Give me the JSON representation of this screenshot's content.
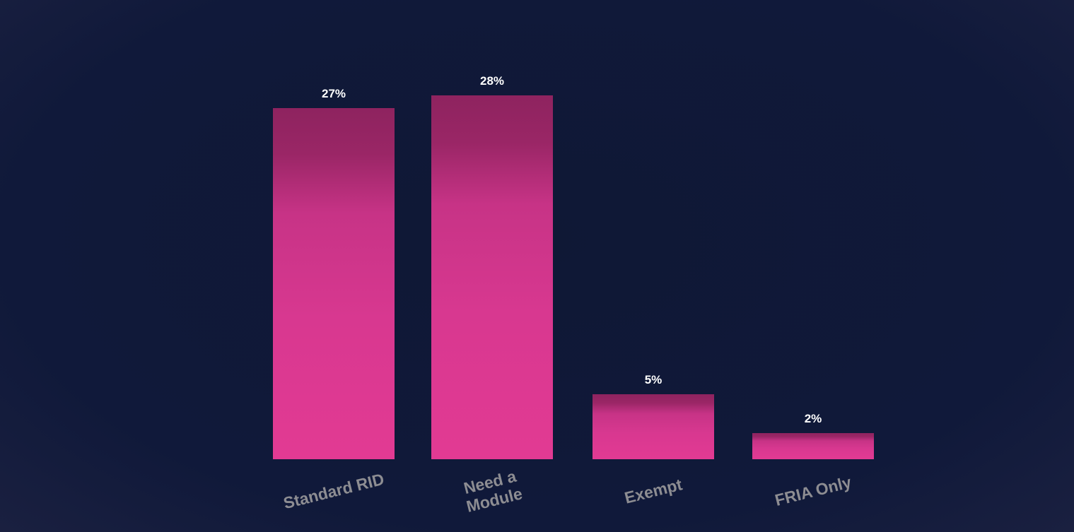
{
  "chart_data": {
    "type": "bar",
    "categories": [
      "Standard RID",
      "Need a\nModule",
      "Exempt",
      "FRIA Only"
    ],
    "values": [
      27,
      28,
      5,
      2
    ],
    "value_labels": [
      "27%",
      "28%",
      "5%",
      "2%"
    ],
    "color": "#e23a93"
  }
}
